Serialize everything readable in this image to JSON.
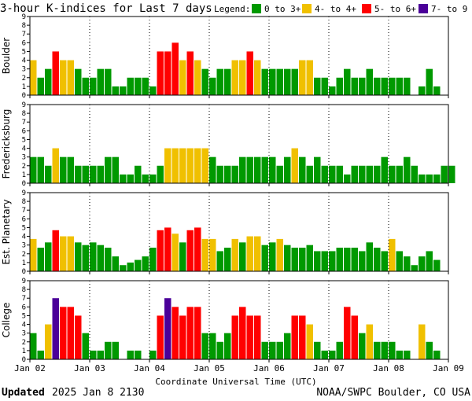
{
  "chart_data": {
    "type": "bar",
    "title": "3-hour K-indices for Last 7 days",
    "legend": {
      "label": "Legend:",
      "entries": [
        {
          "label": "0 to 3+",
          "color": "#009900"
        },
        {
          "label": "4- to 4+",
          "color": "#f0c000"
        },
        {
          "label": "5- to 6+",
          "color": "#ff0000"
        },
        {
          "label": "7- to 9",
          "color": "#4b0099"
        }
      ]
    },
    "xlabel": "Coordinate Universal Time (UTC)",
    "x_ticks": [
      "Jan 02",
      "Jan 03",
      "Jan 04",
      "Jan 05",
      "Jan 06",
      "Jan 07",
      "Jan 08",
      "Jan 09"
    ],
    "ylim": [
      0,
      9
    ],
    "y_ticks": [
      "0",
      "1",
      "2",
      "3",
      "4",
      "5",
      "6",
      "7",
      "8",
      "9"
    ],
    "intervals_per_day": 8,
    "series": [
      {
        "name": "Boulder",
        "values": [
          4,
          2,
          3,
          5,
          4,
          4,
          3,
          2,
          2,
          3,
          3,
          1,
          1,
          2,
          2,
          2,
          1,
          5,
          5,
          6,
          4,
          5,
          4,
          3,
          2,
          3,
          3,
          4,
          4,
          5,
          4,
          3,
          3,
          3,
          3,
          3,
          4,
          4,
          2,
          2,
          1,
          2,
          3,
          2,
          2,
          3,
          2,
          2,
          2,
          2,
          2,
          0,
          1,
          3,
          1,
          0
        ]
      },
      {
        "name": "Fredericksburg",
        "values": [
          3,
          3,
          2,
          4,
          3,
          3,
          2,
          2,
          2,
          2,
          3,
          3,
          1,
          1,
          2,
          1,
          1,
          2,
          4,
          4,
          4,
          4,
          4,
          4,
          3,
          2,
          2,
          2,
          3,
          3,
          3,
          3,
          3,
          2,
          3,
          4,
          3,
          2,
          3,
          2,
          2,
          2,
          1,
          2,
          2,
          2,
          2,
          3,
          2,
          2,
          3,
          2,
          1,
          1,
          1,
          2,
          2,
          0
        ]
      },
      {
        "name": "Est. Planetary",
        "values": [
          3.7,
          2.7,
          3.3,
          4.7,
          4,
          4,
          3.3,
          3,
          3.3,
          3,
          2.7,
          1.7,
          0.7,
          1,
          1.3,
          1.7,
          2.7,
          4.7,
          5,
          4.3,
          3.3,
          4.7,
          5,
          3.7,
          3.7,
          2.3,
          2.7,
          3.7,
          3.3,
          4,
          4,
          3,
          3.3,
          3.7,
          3,
          2.7,
          2.7,
          3,
          2.3,
          2.3,
          2.3,
          2.7,
          2.7,
          2.7,
          2.3,
          3.3,
          2.7,
          2.3,
          3.7,
          2.3,
          1.7,
          0.7,
          1.7,
          2.3,
          1.3,
          0
        ]
      },
      {
        "name": "College",
        "values": [
          3,
          1,
          4,
          7,
          6,
          6,
          5,
          3,
          1,
          1,
          2,
          2,
          0,
          1,
          1,
          0,
          1,
          5,
          7,
          6,
          5,
          6,
          6,
          3,
          3,
          2,
          3,
          5,
          6,
          5,
          5,
          2,
          2,
          2,
          3,
          5,
          5,
          4,
          2,
          1,
          1,
          2,
          6,
          5,
          3,
          4,
          2,
          2,
          2,
          1,
          1,
          0,
          4,
          2,
          1,
          0
        ]
      }
    ]
  },
  "footer": {
    "updated_label": "Updated",
    "updated_value": "2025 Jan  8 2130",
    "source": "NOAA/SWPC Boulder, CO USA"
  }
}
